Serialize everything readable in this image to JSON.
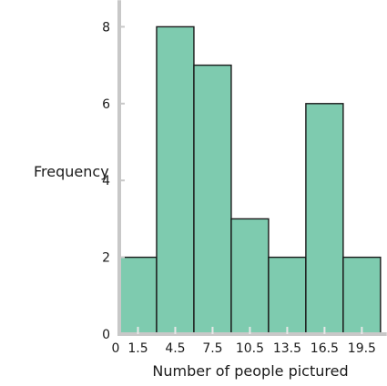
{
  "chart_data": {
    "type": "bar",
    "subtype": "histogram",
    "xlabel": "Number of people pictured",
    "ylabel": "Frequency",
    "bin_edges": [
      0,
      3,
      6,
      9,
      12,
      15,
      18,
      21
    ],
    "x_tick_values": [
      0,
      1.5,
      4.5,
      7.5,
      10.5,
      13.5,
      16.5,
      19.5
    ],
    "x_tick_labels": [
      "0",
      "1.5",
      "4.5",
      "7.5",
      "10.5",
      "13.5",
      "16.5",
      "19.5"
    ],
    "categories": [
      "1.5",
      "4.5",
      "7.5",
      "10.5",
      "13.5",
      "16.5",
      "19.5"
    ],
    "values": [
      2,
      8,
      7,
      3,
      2,
      6,
      2
    ],
    "y_ticks": [
      0,
      2,
      4,
      6,
      8
    ],
    "ylim": [
      0,
      8.5
    ],
    "xlim": [
      0,
      21.5
    ],
    "grid": false,
    "colors": {
      "bar_fill": "#7ecbaf",
      "bar_stroke": "#1a1a1a",
      "axis": "#c8c8c8",
      "text": "#1a1a1a"
    }
  }
}
